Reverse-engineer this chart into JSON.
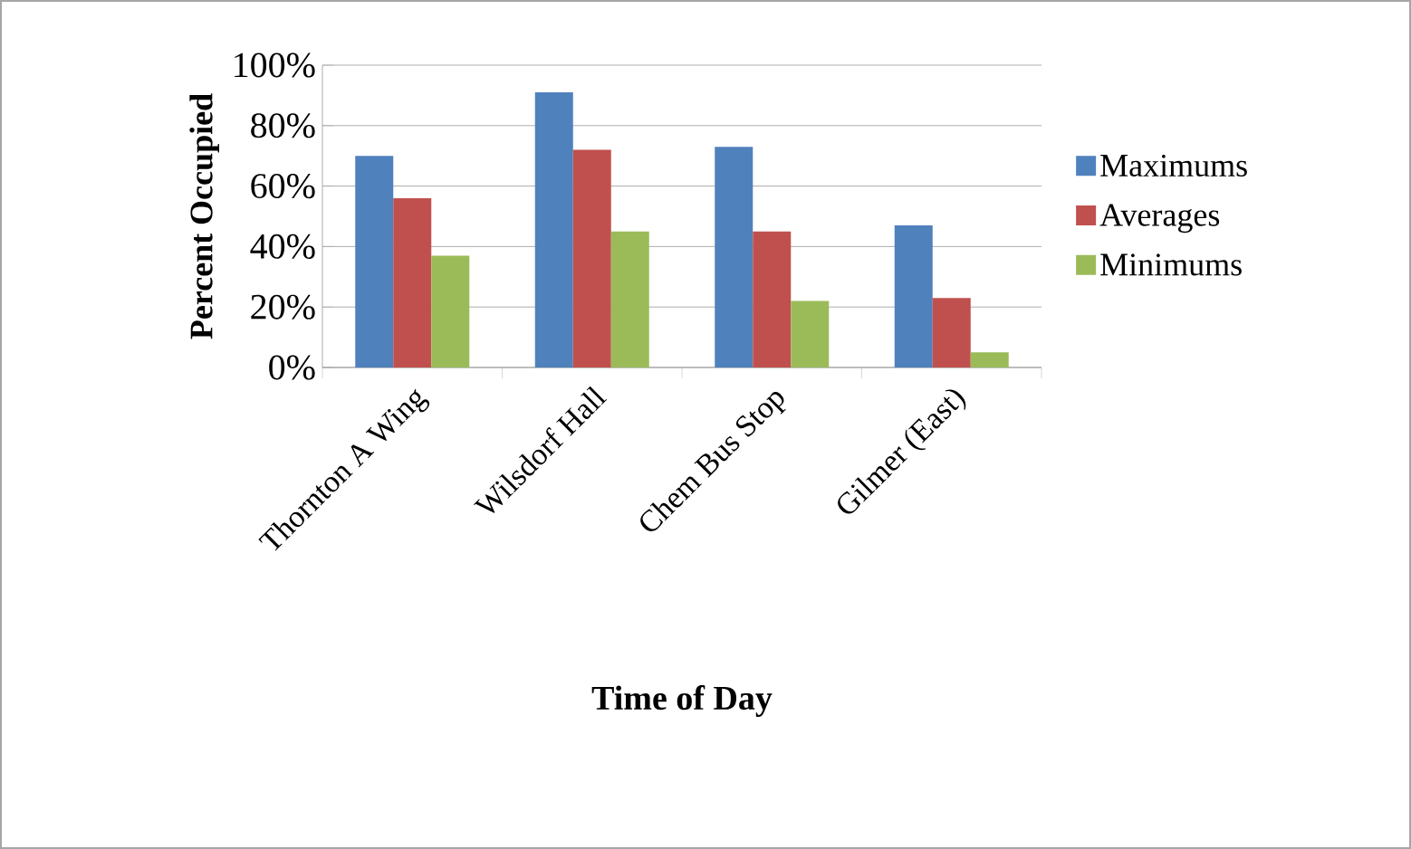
{
  "chart_data": {
    "type": "bar",
    "xlabel": "Time of Day",
    "ylabel": "Percent Occupied",
    "categories": [
      "Thornton A Wing",
      "Wilsdorf Hall",
      "Chem Bus Stop",
      "Gilmer (East)"
    ],
    "series": [
      {
        "name": "Maximums",
        "color": "#4f81bd",
        "values": [
          70,
          91,
          73,
          47
        ]
      },
      {
        "name": "Averages",
        "color": "#c0504d",
        "values": [
          56,
          72,
          45,
          23
        ]
      },
      {
        "name": "Minimums",
        "color": "#9bbb59",
        "values": [
          37,
          45,
          22,
          5
        ]
      }
    ],
    "ylim": [
      0,
      100
    ],
    "yticks": [
      {
        "value": 0,
        "label": "0%"
      },
      {
        "value": 20,
        "label": "20%"
      },
      {
        "value": 40,
        "label": "40%"
      },
      {
        "value": 60,
        "label": "60%"
      },
      {
        "value": 80,
        "label": "80%"
      },
      {
        "value": 100,
        "label": "100%"
      }
    ],
    "grid": "y",
    "legend": "right"
  }
}
